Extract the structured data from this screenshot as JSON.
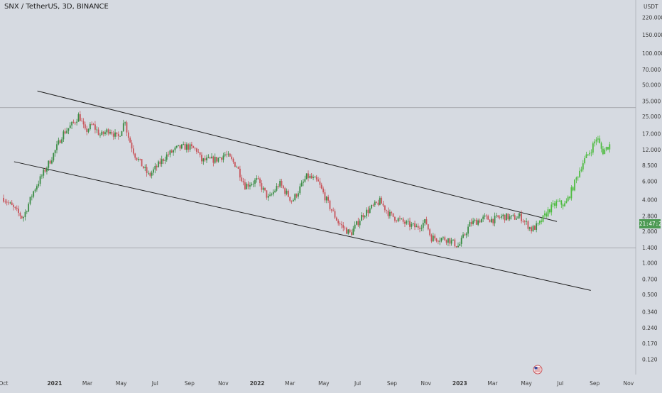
{
  "header": {
    "title": "SNX / TetherUS, 3D, BINANCE"
  },
  "price_axis": {
    "unit": "USDT",
    "current_price_label": "21:47:20"
  },
  "colors": {
    "background": "#d6dae1",
    "up_candle": "#3a8c44",
    "down_candle": "#c8545a",
    "projection": "#4cbb3e",
    "channel_line": "#1e1e1e",
    "horizontal_line": "#9a9aa0",
    "axis_text": "#3c3c3c",
    "price_badge": "#4d9a54"
  },
  "icons": {
    "flag": "us-flag-icon"
  },
  "chart_data": {
    "type": "candlestick",
    "scale": "log",
    "ylim": [
      0.1,
      320
    ],
    "x_range": [
      "2020-10-01",
      "2023-11-05"
    ],
    "x_ticks": [
      {
        "label": "Oct",
        "date": "2020-10-01"
      },
      {
        "label": "2021",
        "date": "2021-01-01"
      },
      {
        "label": "Mar",
        "date": "2021-03-01"
      },
      {
        "label": "May",
        "date": "2021-05-01"
      },
      {
        "label": "Jul",
        "date": "2021-07-01"
      },
      {
        "label": "Sep",
        "date": "2021-09-01"
      },
      {
        "label": "Nov",
        "date": "2021-11-01"
      },
      {
        "label": "2022",
        "date": "2022-01-01"
      },
      {
        "label": "Mar",
        "date": "2022-03-01"
      },
      {
        "label": "May",
        "date": "2022-05-01"
      },
      {
        "label": "Jul",
        "date": "2022-07-01"
      },
      {
        "label": "Sep",
        "date": "2022-09-01"
      },
      {
        "label": "Nov",
        "date": "2022-11-01"
      },
      {
        "label": "2023",
        "date": "2023-01-01"
      },
      {
        "label": "Mar",
        "date": "2023-03-01"
      },
      {
        "label": "May",
        "date": "2023-05-01"
      },
      {
        "label": "Jul",
        "date": "2023-07-01"
      },
      {
        "label": "Sep",
        "date": "2023-09-01"
      },
      {
        "label": "Nov",
        "date": "2023-11-01"
      }
    ],
    "y_ticks": [
      {
        "label": "220.000",
        "value": 220
      },
      {
        "label": "150.000",
        "value": 150
      },
      {
        "label": "100.000",
        "value": 100
      },
      {
        "label": "70.000",
        "value": 70
      },
      {
        "label": "50.000",
        "value": 50
      },
      {
        "label": "35.000",
        "value": 35
      },
      {
        "label": "25.000",
        "value": 25
      },
      {
        "label": "17.000",
        "value": 17
      },
      {
        "label": "12.000",
        "value": 12
      },
      {
        "label": "8.500",
        "value": 8.5
      },
      {
        "label": "6.000",
        "value": 6
      },
      {
        "label": "4.000",
        "value": 4
      },
      {
        "label": "2.800",
        "value": 2.8
      },
      {
        "label": "2.000",
        "value": 2
      },
      {
        "label": "1.400",
        "value": 1.4
      },
      {
        "label": "1.000",
        "value": 1
      },
      {
        "label": "0.700",
        "value": 0.7
      },
      {
        "label": "0.500",
        "value": 0.5
      },
      {
        "label": "0.340",
        "value": 0.34
      },
      {
        "label": "0.240",
        "value": 0.24
      },
      {
        "label": "0.170",
        "value": 0.17
      },
      {
        "label": "0.120",
        "value": 0.12
      }
    ],
    "horizontal_levels": [
      30.5,
      1.4
    ],
    "channel_upper": [
      {
        "date": "2020-12-01",
        "value": 44
      },
      {
        "date": "2023-06-25",
        "value": 2.5
      }
    ],
    "channel_lower": [
      {
        "date": "2020-10-20",
        "value": 9.3
      },
      {
        "date": "2023-08-25",
        "value": 0.55
      }
    ],
    "price_path": [
      [
        "2020-10-01",
        4.2
      ],
      [
        "2020-10-25",
        3.1
      ],
      [
        "2020-11-05",
        2.7
      ],
      [
        "2020-11-25",
        5.0
      ],
      [
        "2020-12-15",
        7.8
      ],
      [
        "2021-01-01",
        11.5
      ],
      [
        "2021-01-15",
        17.0
      ],
      [
        "2021-02-05",
        22.0
      ],
      [
        "2021-02-14",
        26.0
      ],
      [
        "2021-02-25",
        18.0
      ],
      [
        "2021-03-10",
        21.0
      ],
      [
        "2021-03-25",
        16.5
      ],
      [
        "2021-04-10",
        19.0
      ],
      [
        "2021-04-25",
        15.5
      ],
      [
        "2021-05-08",
        23.5
      ],
      [
        "2021-05-12",
        17.0
      ],
      [
        "2021-05-25",
        11.0
      ],
      [
        "2021-06-20",
        6.8
      ],
      [
        "2021-07-20",
        10.5
      ],
      [
        "2021-08-10",
        12.5
      ],
      [
        "2021-08-28",
        13.0
      ],
      [
        "2021-09-15",
        12.0
      ],
      [
        "2021-09-22",
        9.5
      ],
      [
        "2021-10-20",
        9.8
      ],
      [
        "2021-11-05",
        11.0
      ],
      [
        "2021-11-25",
        8.5
      ],
      [
        "2021-12-10",
        5.5
      ],
      [
        "2022-01-01",
        6.2
      ],
      [
        "2022-01-22",
        4.1
      ],
      [
        "2022-02-10",
        5.8
      ],
      [
        "2022-03-05",
        3.9
      ],
      [
        "2022-04-01",
        6.8
      ],
      [
        "2022-04-20",
        6.0
      ],
      [
        "2022-05-10",
        3.6
      ],
      [
        "2022-05-28",
        2.4
      ],
      [
        "2022-06-18",
        1.9
      ],
      [
        "2022-07-10",
        2.9
      ],
      [
        "2022-08-10",
        3.9
      ],
      [
        "2022-08-28",
        2.9
      ],
      [
        "2022-09-25",
        2.4
      ],
      [
        "2022-10-15",
        2.2
      ],
      [
        "2022-11-01",
        2.5
      ],
      [
        "2022-11-10",
        1.75
      ],
      [
        "2022-12-10",
        1.7
      ],
      [
        "2022-12-30",
        1.45
      ],
      [
        "2023-01-20",
        2.4
      ],
      [
        "2023-02-15",
        2.7
      ],
      [
        "2023-03-01",
        2.6
      ],
      [
        "2023-03-20",
        2.8
      ],
      [
        "2023-04-05",
        2.7
      ],
      [
        "2023-04-20",
        2.8
      ],
      [
        "2023-05-10",
        2.1
      ],
      [
        "2023-05-22",
        2.3
      ]
    ],
    "projection_path": [
      [
        "2023-05-25",
        2.4
      ],
      [
        "2023-06-10",
        3.2
      ],
      [
        "2023-06-25",
        3.8
      ],
      [
        "2023-07-10",
        3.6
      ],
      [
        "2023-07-25",
        5.5
      ],
      [
        "2023-08-10",
        9.0
      ],
      [
        "2023-08-25",
        12.0
      ],
      [
        "2023-09-05",
        16.0
      ],
      [
        "2023-09-15",
        11.5
      ],
      [
        "2023-09-28",
        13.5
      ]
    ]
  }
}
